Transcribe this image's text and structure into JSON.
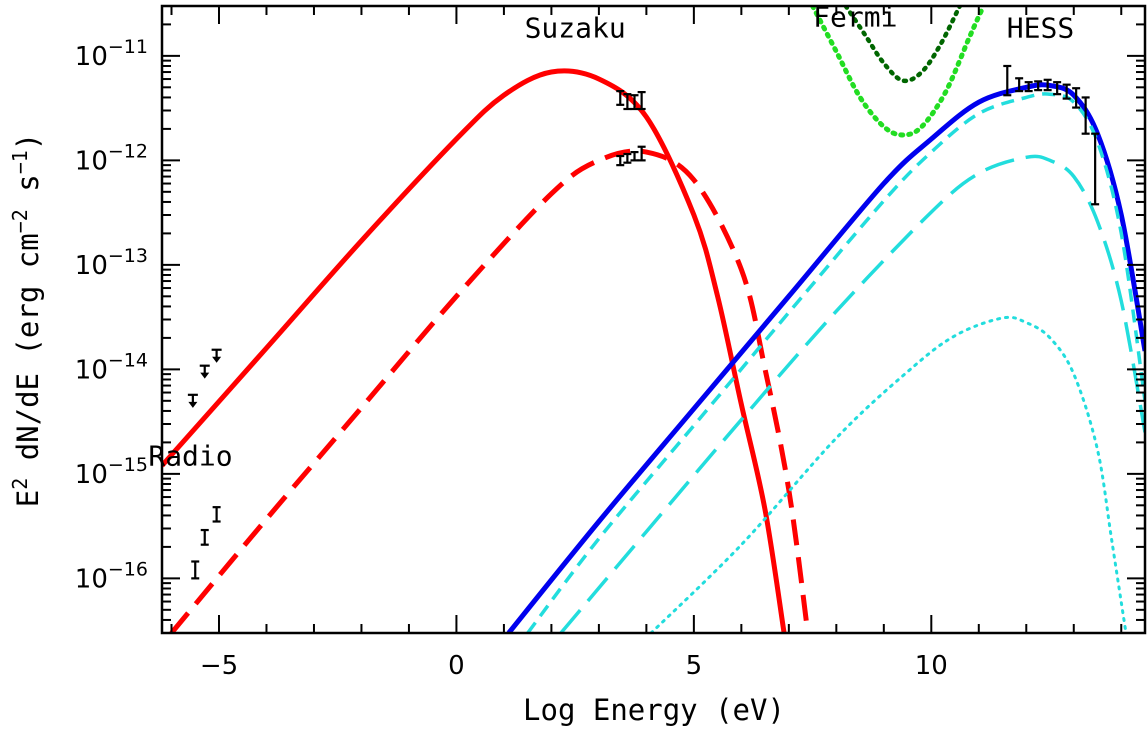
{
  "chart_data": {
    "type": "line",
    "title": "",
    "xlabel": "Log Energy (eV)",
    "ylabel_parts": [
      "E",
      "2",
      " dN/dE (erg cm",
      "−2",
      " s",
      "−1",
      ")"
    ],
    "x_scale": "linear",
    "y_scale": "log",
    "xlim": [
      -6.2,
      14.5
    ],
    "ylim": [
      3e-17,
      3e-11
    ],
    "x_ticks": [
      -5,
      0,
      5,
      10
    ],
    "x_tick_labels": [
      "−5",
      "0",
      "5",
      "10"
    ],
    "y_ticks": [
      {
        "value": 1e-11,
        "base": "10",
        "exp": "−11"
      },
      {
        "value": 1e-12,
        "base": "10",
        "exp": "−12"
      },
      {
        "value": 1e-13,
        "base": "10",
        "exp": "−13"
      },
      {
        "value": 1e-14,
        "base": "10",
        "exp": "−14"
      },
      {
        "value": 1e-15,
        "base": "10",
        "exp": "−15"
      },
      {
        "value": 1e-16,
        "base": "10",
        "exp": "−16"
      }
    ],
    "annotations": [
      {
        "text": "Suzaku",
        "x": 2.5,
        "y": 1.5e-11
      },
      {
        "text": "Fermi",
        "x": 8.4,
        "y": 1.9e-11
      },
      {
        "text": "HESS",
        "x": 12.3,
        "y": 1.5e-11
      },
      {
        "text": "Radio",
        "x": -5.6,
        "y": 1.2e-15
      }
    ],
    "series": [
      {
        "style": "solid",
        "color": "#ff0000",
        "width": 5,
        "points": [
          [
            -6.2,
            1.2e-15
          ],
          [
            -4,
            1.6e-14
          ],
          [
            -2,
            1.7e-13
          ],
          [
            0,
            1.6e-12
          ],
          [
            1,
            4.2e-12
          ],
          [
            2,
            7e-12
          ],
          [
            3,
            6e-12
          ],
          [
            4,
            2.6e-12
          ],
          [
            5,
            3e-13
          ],
          [
            5.5,
            5e-14
          ],
          [
            6,
            4.6e-15
          ],
          [
            6.5,
            4.5e-16
          ],
          [
            6.9,
            3e-17
          ]
        ]
      },
      {
        "style": "dashed",
        "color": "#ff0000",
        "width": 5,
        "points": [
          [
            -6,
            3e-17
          ],
          [
            -4,
            3.7e-16
          ],
          [
            -2,
            4.3e-15
          ],
          [
            0,
            5e-14
          ],
          [
            2,
            4.8e-13
          ],
          [
            3,
            1e-12
          ],
          [
            4,
            1.2e-12
          ],
          [
            5,
            6.5e-13
          ],
          [
            6,
            9e-14
          ],
          [
            6.5,
            1e-14
          ],
          [
            7,
            7e-16
          ],
          [
            7.4,
            3e-17
          ]
        ]
      },
      {
        "style": "solid",
        "color": "#0000ee",
        "width": 5,
        "points": [
          [
            1.1,
            3e-17
          ],
          [
            3,
            3.5e-16
          ],
          [
            5,
            4.2e-15
          ],
          [
            7,
            5e-14
          ],
          [
            9,
            6e-13
          ],
          [
            10,
            1.6e-12
          ],
          [
            11,
            3.6e-12
          ],
          [
            12,
            5e-12
          ],
          [
            12.5,
            5.2e-12
          ],
          [
            13,
            4.2e-12
          ],
          [
            13.5,
            1.8e-12
          ],
          [
            14,
            3e-13
          ],
          [
            14.5,
            1.5e-14
          ]
        ]
      },
      {
        "style": "short-dash",
        "color": "#22dddd",
        "width": 3.5,
        "points": [
          [
            1.5,
            3e-17
          ],
          [
            3,
            2.4e-16
          ],
          [
            5,
            2.9e-15
          ],
          [
            7,
            3.5e-14
          ],
          [
            9,
            4.1e-13
          ],
          [
            10,
            1.2e-12
          ],
          [
            11,
            2.8e-12
          ],
          [
            12,
            4e-12
          ],
          [
            12.5,
            4.3e-12
          ],
          [
            13,
            3.6e-12
          ],
          [
            13.5,
            1.5e-12
          ],
          [
            14,
            2e-13
          ],
          [
            14.5,
            5e-15
          ]
        ]
      },
      {
        "style": "long-dash",
        "color": "#22dddd",
        "width": 3.5,
        "points": [
          [
            2.2,
            3e-17
          ],
          [
            4,
            2.8e-16
          ],
          [
            6,
            3.3e-15
          ],
          [
            8,
            3.6e-14
          ],
          [
            10,
            3.2e-13
          ],
          [
            11,
            7.5e-13
          ],
          [
            12,
            1.07e-12
          ],
          [
            12.5,
            1e-12
          ],
          [
            13,
            7e-13
          ],
          [
            13.5,
            2.6e-13
          ],
          [
            14,
            4.5e-14
          ],
          [
            14.5,
            2.5e-15
          ]
        ]
      },
      {
        "style": "dotted",
        "color": "#22dddd",
        "width": 3,
        "points": [
          [
            4.1,
            3e-17
          ],
          [
            6,
            2.1e-16
          ],
          [
            8,
            2.2e-15
          ],
          [
            9.5,
            9.5e-15
          ],
          [
            10.5,
            2.1e-14
          ],
          [
            11.5,
            3.1e-14
          ],
          [
            12,
            2.8e-14
          ],
          [
            12.5,
            2e-14
          ],
          [
            13,
            9e-15
          ],
          [
            13.5,
            1.7e-15
          ],
          [
            13.8,
            2.3e-16
          ],
          [
            14.1,
            3e-17
          ]
        ]
      },
      {
        "style": "dotted",
        "color": "#006600",
        "width": 4.5,
        "points": [
          [
            8.2,
            3e-11
          ],
          [
            8.6,
            1.6e-11
          ],
          [
            9,
            8.5e-12
          ],
          [
            9.4,
            5.8e-12
          ],
          [
            9.8,
            7e-12
          ],
          [
            10.2,
            1.3e-11
          ],
          [
            10.6,
            3e-11
          ]
        ]
      },
      {
        "style": "dotted",
        "color": "#22dd22",
        "width": 5,
        "points": [
          [
            7.5,
            3e-11
          ],
          [
            8.0,
            1.1e-11
          ],
          [
            8.5,
            4e-12
          ],
          [
            9.0,
            2.1e-12
          ],
          [
            9.4,
            1.75e-12
          ],
          [
            9.8,
            2.1e-12
          ],
          [
            10.3,
            4.5e-12
          ],
          [
            10.8,
            1.5e-11
          ],
          [
            11.1,
            3e-11
          ]
        ]
      }
    ],
    "data_points": [
      {
        "group": "Suzaku",
        "x": 3.45,
        "y": 4e-12,
        "lo": 3.4e-12,
        "hi": 4.6e-12
      },
      {
        "group": "Suzaku",
        "x": 3.6,
        "y": 3.7e-12,
        "lo": 3.1e-12,
        "hi": 4.3e-12
      },
      {
        "group": "Suzaku",
        "x": 3.75,
        "y": 3.6e-12,
        "lo": 3.1e-12,
        "hi": 4.2e-12
      },
      {
        "group": "Suzaku",
        "x": 3.9,
        "y": 3.7e-12,
        "lo": 3.1e-12,
        "hi": 4.5e-12
      },
      {
        "group": "Suzaku",
        "x": 3.45,
        "y": 1e-12,
        "lo": 9e-13,
        "hi": 1.1e-12
      },
      {
        "group": "Suzaku",
        "x": 3.6,
        "y": 1.05e-12,
        "lo": 9.5e-13,
        "hi": 1.15e-12
      },
      {
        "group": "Suzaku",
        "x": 3.75,
        "y": 1.1e-12,
        "lo": 1e-12,
        "hi": 1.2e-12
      },
      {
        "group": "Suzaku",
        "x": 3.9,
        "y": 1.15e-12,
        "lo": 1e-12,
        "hi": 1.35e-12
      },
      {
        "group": "HESS",
        "x": 11.6,
        "y": 5.8e-12,
        "lo": 4.2e-12,
        "hi": 8e-12
      },
      {
        "group": "HESS",
        "x": 11.85,
        "y": 5.3e-12,
        "lo": 4.6e-12,
        "hi": 6.1e-12
      },
      {
        "group": "HESS",
        "x": 12.05,
        "y": 5.1e-12,
        "lo": 4.6e-12,
        "hi": 5.6e-12
      },
      {
        "group": "HESS",
        "x": 12.25,
        "y": 5.2e-12,
        "lo": 4.7e-12,
        "hi": 5.7e-12
      },
      {
        "group": "HESS",
        "x": 12.45,
        "y": 5.3e-12,
        "lo": 4.7e-12,
        "hi": 5.9e-12
      },
      {
        "group": "HESS",
        "x": 12.65,
        "y": 4.9e-12,
        "lo": 4.3e-12,
        "hi": 5.6e-12
      },
      {
        "group": "HESS",
        "x": 12.85,
        "y": 4.6e-12,
        "lo": 3.9e-12,
        "hi": 5.3e-12
      },
      {
        "group": "HESS",
        "x": 13.05,
        "y": 4e-12,
        "lo": 3.2e-12,
        "hi": 4.9e-12
      },
      {
        "group": "HESS",
        "x": 13.25,
        "y": 2.8e-12,
        "lo": 1.8e-12,
        "hi": 4e-12
      },
      {
        "group": "HESS",
        "x": 13.45,
        "y": 9e-13,
        "lo": 3.8e-13,
        "hi": 1.8e-12
      },
      {
        "group": "Radio",
        "x": -5.5,
        "y": 1.2e-16,
        "lo": 1e-16,
        "hi": 1.45e-16
      },
      {
        "group": "Radio",
        "x": -5.3,
        "y": 2.5e-16,
        "lo": 2.1e-16,
        "hi": 2.9e-16
      },
      {
        "group": "Radio",
        "x": -5.05,
        "y": 4.1e-16,
        "lo": 3.5e-16,
        "hi": 4.8e-16
      }
    ],
    "upper_limits": [
      {
        "x": -5.55,
        "y": 5e-15
      },
      {
        "x": -5.3,
        "y": 9.5e-15
      },
      {
        "x": -5.05,
        "y": 1.35e-14
      }
    ]
  }
}
